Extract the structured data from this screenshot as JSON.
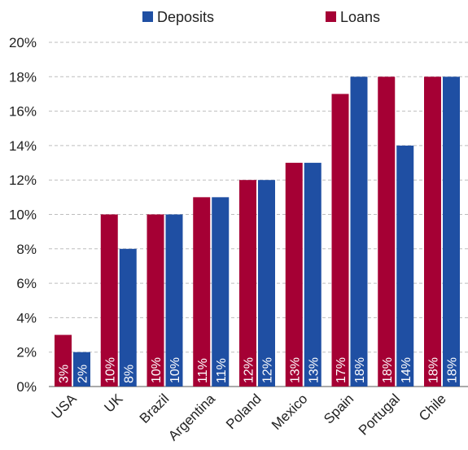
{
  "chart_data": {
    "type": "bar",
    "title": "",
    "xlabel": "",
    "ylabel": "",
    "categories": [
      "USA",
      "UK",
      "Brazil",
      "Argentina",
      "Poland",
      "Mexico",
      "Spain",
      "Portugal",
      "Chile"
    ],
    "series": [
      {
        "name": "Loans",
        "color": "#a50034",
        "values": [
          3,
          10,
          10,
          11,
          12,
          13,
          17,
          18,
          18
        ],
        "labels": [
          "3%",
          "10%",
          "10%",
          "11%",
          "12%",
          "13%",
          "17%",
          "18%",
          "18%"
        ]
      },
      {
        "name": "Deposits",
        "color": "#1f4fa3",
        "values": [
          2,
          8,
          10,
          11,
          12,
          13,
          18,
          14,
          18
        ],
        "labels": [
          "2%",
          "8%",
          "10%",
          "11%",
          "12%",
          "13%",
          "18%",
          "14%",
          "18%"
        ]
      }
    ],
    "legend_order": [
      "Deposits",
      "Loans"
    ],
    "legend_position": "top",
    "ylim": [
      0,
      20
    ],
    "yticks": [
      "0%",
      "2%",
      "4%",
      "6%",
      "8%",
      "10%",
      "12%",
      "14%",
      "16%",
      "18%",
      "20%"
    ],
    "ytick_values": [
      0,
      2,
      4,
      6,
      8,
      10,
      12,
      14,
      16,
      18,
      20
    ],
    "grid": true,
    "grid_style": "dashed-horizontal"
  }
}
